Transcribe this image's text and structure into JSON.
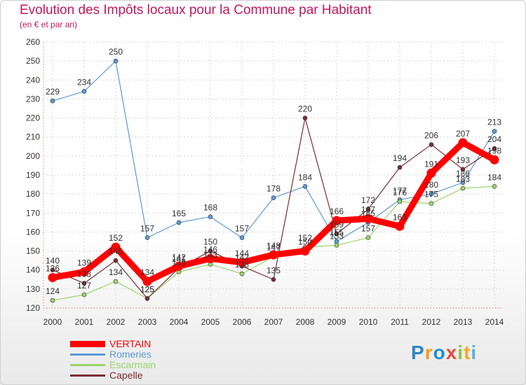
{
  "header": {
    "title": "Evolution des Impôts locaux pour la Commune par Habitant",
    "subtitle": "(en € et par an)"
  },
  "brand": {
    "letters": [
      "P",
      "r",
      "o",
      "x",
      "i",
      "t",
      "i"
    ],
    "colors": [
      "#2e86c1",
      "#f39c12",
      "#1f8fd1",
      "#e74c3c",
      "#8bc34a",
      "#f5a623",
      "#5dade2"
    ]
  },
  "chart_data": {
    "type": "line",
    "title": "Evolution des Impôts locaux pour la Commune par Habitant",
    "subtitle": "(en € et par an)",
    "x": [
      "2000",
      "2001",
      "2002",
      "2003",
      "2004",
      "2005",
      "2006",
      "2007",
      "2008",
      "2009",
      "2010",
      "2011",
      "2012",
      "2013",
      "2014"
    ],
    "ylim": [
      120,
      260
    ],
    "yticks": [
      120,
      130,
      140,
      150,
      160,
      170,
      180,
      190,
      200,
      210,
      220,
      230,
      240,
      250,
      260
    ],
    "grid": true,
    "legend_position": "bottom-left",
    "series": [
      {
        "name": "VERTAIN",
        "color": "#ff0000",
        "values": [
          136,
          139,
          152,
          134,
          142,
          146,
          144,
          148,
          150,
          166,
          167,
          163,
          191,
          207,
          198
        ]
      },
      {
        "name": "Romeries",
        "color": "#5b9bd5",
        "values": [
          229,
          234,
          250,
          157,
          165,
          168,
          157,
          178,
          184,
          155,
          165,
          177,
          180,
          186,
          213
        ]
      },
      {
        "name": "Escarmain",
        "color": "#9bd46b",
        "values": [
          124,
          127,
          134,
          125,
          139,
          143,
          138,
          147,
          152,
          153,
          157,
          176,
          175,
          183,
          184
        ]
      },
      {
        "name": "Capelle",
        "color": "#7b2d35",
        "values": [
          140,
          133,
          145,
          125,
          141,
          150,
          142,
          135,
          220,
          159,
          172,
          194,
          206,
          193,
          204
        ]
      }
    ]
  }
}
